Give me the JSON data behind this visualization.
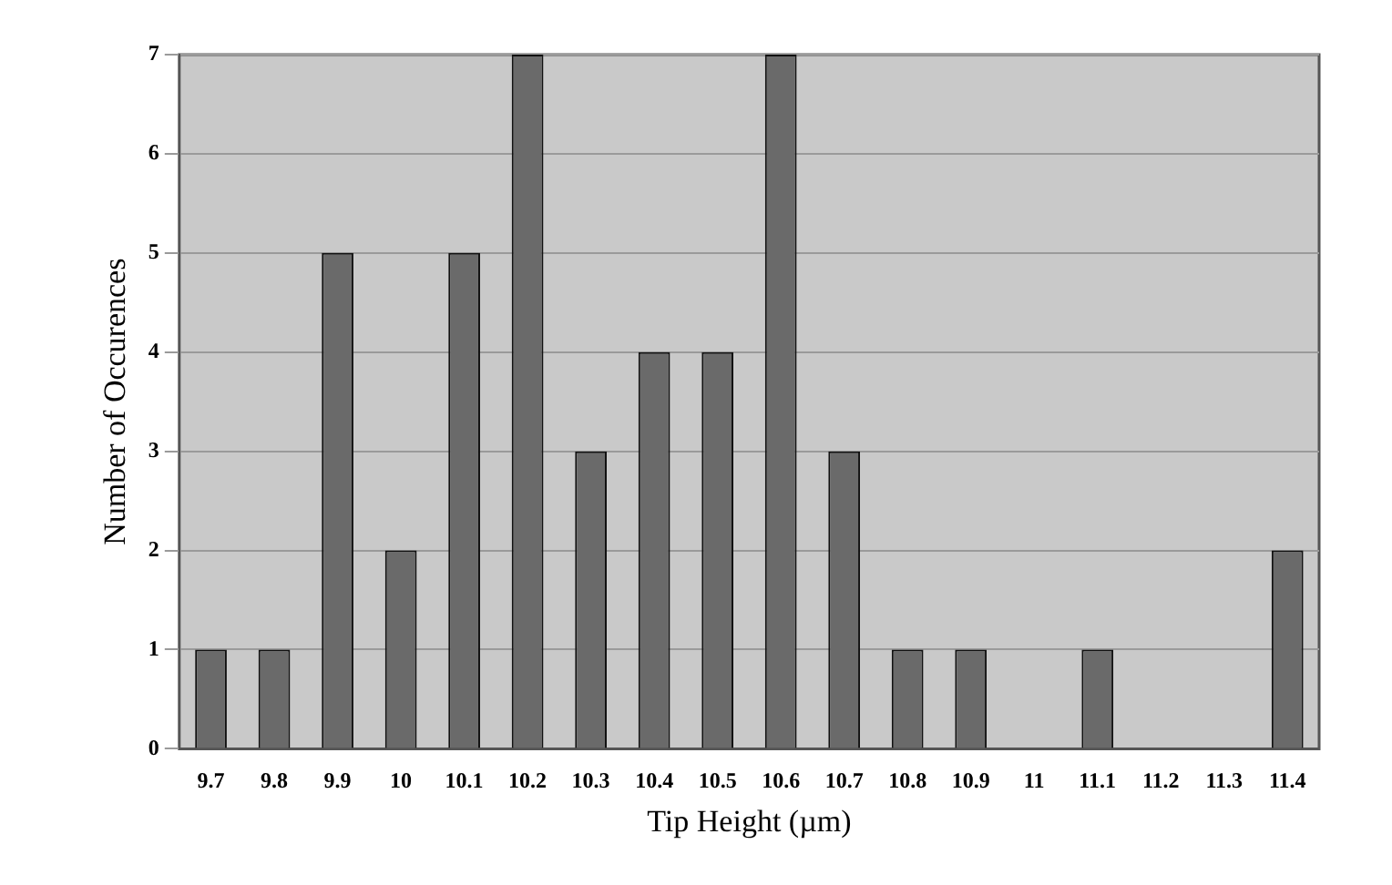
{
  "chart_data": {
    "type": "bar",
    "xlabel": "Tip Height (µm)",
    "ylabel": "Number of Occurences",
    "categories": [
      "9.7",
      "9.8",
      "9.9",
      "10",
      "10.1",
      "10.2",
      "10.3",
      "10.4",
      "10.5",
      "10.6",
      "10.7",
      "10.8",
      "10.9",
      "11",
      "11.1",
      "11.2",
      "11.3",
      "11.4"
    ],
    "values": [
      1,
      1,
      5,
      2,
      5,
      7,
      3,
      4,
      4,
      7,
      3,
      1,
      1,
      0,
      1,
      0,
      0,
      2
    ],
    "color": "#6a6a6a",
    "ylim": [
      0,
      7
    ],
    "yticks": [
      0,
      1,
      2,
      3,
      4,
      5,
      6,
      7
    ],
    "grid": "y",
    "legend": false
  }
}
